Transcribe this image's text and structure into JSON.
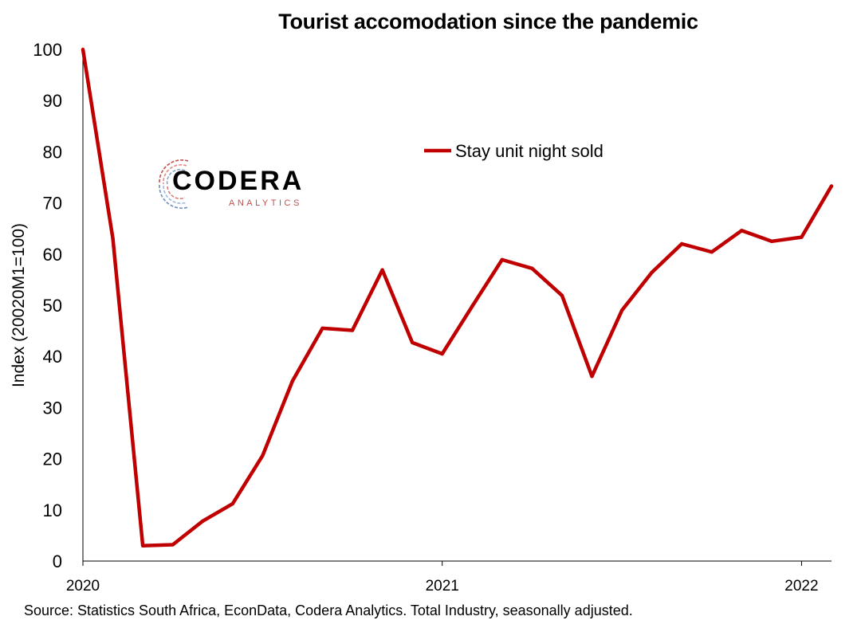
{
  "chart_data": {
    "type": "line",
    "title": "Tourist accomodation since the pandemic",
    "ylabel": "Index (20020M1=100)",
    "xlabel": "",
    "ylim": [
      0,
      100
    ],
    "yticks": [
      0,
      10,
      20,
      30,
      40,
      50,
      60,
      70,
      80,
      90,
      100
    ],
    "xtick_labels": [
      {
        "label": "2020",
        "x": "2020-01"
      },
      {
        "label": "2021",
        "x": "2021-01"
      },
      {
        "label": "2022",
        "x": "2022-01"
      }
    ],
    "x": [
      "2020-01",
      "2020-02",
      "2020-03",
      "2020-04",
      "2020-05",
      "2020-06",
      "2020-07",
      "2020-08",
      "2020-09",
      "2020-10",
      "2020-11",
      "2020-12",
      "2021-01",
      "2021-02",
      "2021-03",
      "2021-04",
      "2021-05",
      "2021-06",
      "2021-07",
      "2021-08",
      "2021-09",
      "2021-10",
      "2021-11",
      "2021-12",
      "2022-01",
      "2022-02"
    ],
    "series": [
      {
        "name": "Stay unit night sold",
        "color": "#c00000",
        "values": [
          100,
          63,
          3,
          3.2,
          7.8,
          11.2,
          20.6,
          35.2,
          45.5,
          45.1,
          56.9,
          42.7,
          40.5,
          49.8,
          58.9,
          57.2,
          51.9,
          36.1,
          49.0,
          56.4,
          62.0,
          60.4,
          64.6,
          62.5,
          63.3,
          73.3
        ]
      }
    ],
    "legend_position": "top-center",
    "grid": false
  },
  "source_note": "Source: Statistics South Africa, EconData, Codera Analytics. Total Industry, seasonally adjusted.",
  "logo": {
    "word": "CODERA",
    "sub": "ANALYTICS"
  }
}
